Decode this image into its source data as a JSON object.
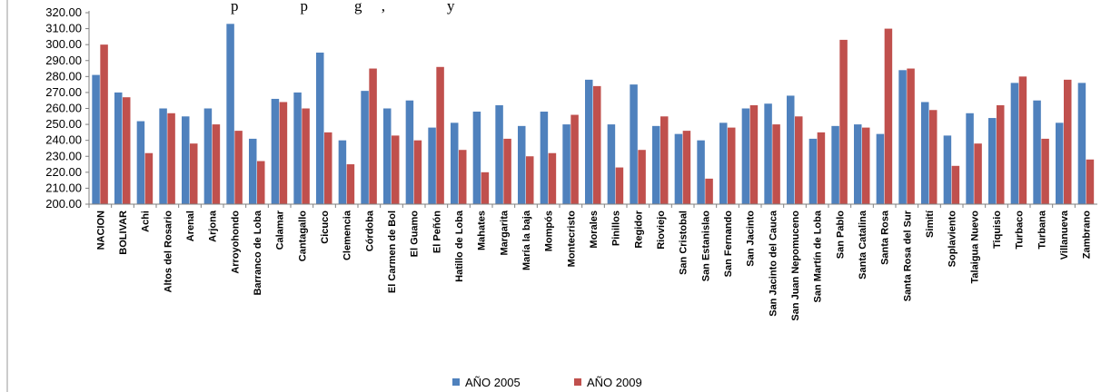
{
  "header_fragment": "p                p            g     ,                y",
  "chart_data": {
    "type": "bar",
    "title": "",
    "xlabel": "",
    "ylabel": "",
    "ylim": [
      200,
      320
    ],
    "yticks": [
      "200.00",
      "210.00",
      "220.00",
      "230.00",
      "240.00",
      "250.00",
      "260.00",
      "270.00",
      "280.00",
      "290.00",
      "300.00",
      "310.00",
      "320.00"
    ],
    "grid": false,
    "legend_position": "bottom",
    "categories": [
      "NACION",
      "BOLIVAR",
      "Achi",
      "Altos del Rosario",
      "Arenal",
      "Arjona",
      "Arroyohondo",
      "Barranco de Loba",
      "Calamar",
      "Cantagallo",
      "Cicuco",
      "Clemencia",
      "Córdoba",
      "El Carmen de Bol",
      "El Guamo",
      "El Peñón",
      "Hatillo de Loba",
      "Mahates",
      "Margarita",
      "María la baja",
      "Mompós",
      "Montecristo",
      "Morales",
      "Pinillos",
      "Regidor",
      "Rioviejo",
      "San Cristobal",
      "San Estanislao",
      "San Fernando",
      "San Jacinto",
      "San Jacinto del Cauca",
      "San Juan Nepomuceno",
      "San Martín de Loba",
      "San Pablo",
      "Santa Catalina",
      "Santa Rosa",
      "Santa Rosa del Sur",
      "Simití",
      "Soplaviento",
      "Talaigua Nuevo",
      "Tiquisio",
      "Turbaco",
      "Turbana",
      "Villanueva",
      "Zambrano"
    ],
    "series": [
      {
        "name": "AÑO 2005",
        "color": "#4f81bd",
        "values": [
          281,
          270,
          252,
          260,
          255,
          260,
          313,
          241,
          266,
          270,
          295,
          240,
          271,
          260,
          265,
          248,
          251,
          258,
          262,
          249,
          258,
          250,
          278,
          250,
          275,
          249,
          244,
          240,
          251,
          260,
          263,
          268,
          241,
          249,
          250,
          244,
          284,
          264,
          243,
          257,
          254,
          276,
          265,
          251,
          276
        ]
      },
      {
        "name": "AÑO 2009",
        "color": "#c0504d",
        "values": [
          300,
          267,
          232,
          257,
          238,
          250,
          246,
          227,
          264,
          260,
          245,
          225,
          285,
          243,
          240,
          286,
          234,
          220,
          241,
          230,
          232,
          256,
          274,
          223,
          234,
          255,
          246,
          216,
          248,
          262,
          250,
          255,
          245,
          303,
          248,
          310,
          285,
          259,
          224,
          238,
          262,
          280,
          241,
          278,
          228
        ]
      }
    ]
  }
}
